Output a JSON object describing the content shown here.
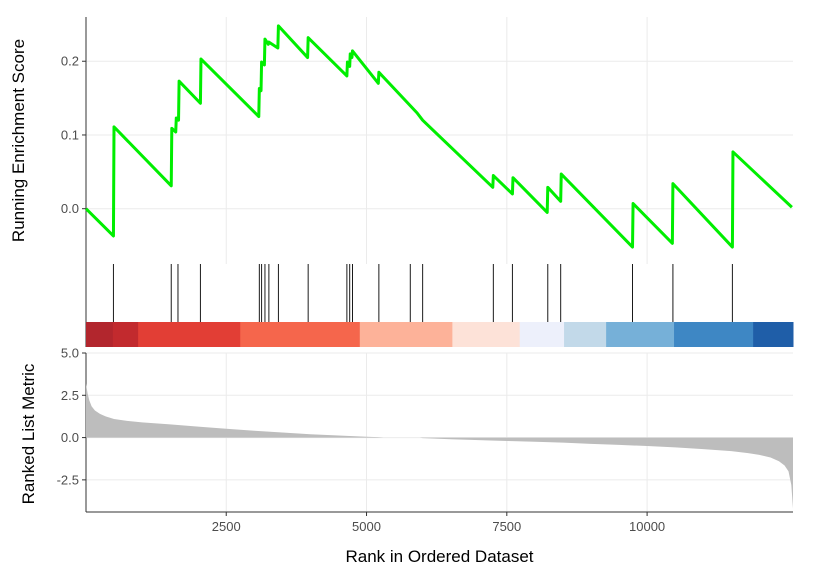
{
  "chart_data": {
    "type": "line",
    "x_range": [
      1,
      12600
    ],
    "x_ticks": [
      2500,
      5000,
      7500,
      10000
    ],
    "x_tick_labels": [
      "2500",
      "5000",
      "7500",
      "10000"
    ],
    "xlabel": "Rank in Ordered Dataset",
    "running_score": {
      "ylabel": "Running Enrichment Score",
      "ylim": [
        -0.075,
        0.26
      ],
      "y_ticks": [
        0.0,
        0.1,
        0.2
      ],
      "y_tick_labels": [
        "0.0",
        "0.1",
        "0.2"
      ],
      "color": "#00ee00",
      "x": [
        1,
        490,
        500,
        1520,
        1530,
        1600,
        1610,
        1650,
        1660,
        2040,
        2050,
        3080,
        3090,
        3120,
        3130,
        3180,
        3190,
        3250,
        3260,
        3420,
        3430,
        3950,
        3960,
        4650,
        4660,
        4700,
        4710,
        4740,
        4750,
        5210,
        5220,
        5900,
        6000,
        7250,
        7260,
        7600,
        7610,
        8220,
        8230,
        8460,
        8470,
        9740,
        9750,
        10450,
        10460,
        11520,
        11530,
        12580
      ],
      "y": [
        0.0,
        -0.037,
        0.111,
        0.031,
        0.109,
        0.104,
        0.123,
        0.12,
        0.173,
        0.143,
        0.203,
        0.125,
        0.163,
        0.16,
        0.199,
        0.195,
        0.23,
        0.223,
        0.226,
        0.218,
        0.248,
        0.205,
        0.232,
        0.18,
        0.199,
        0.193,
        0.21,
        0.205,
        0.214,
        0.17,
        0.185,
        0.13,
        0.12,
        0.029,
        0.045,
        0.02,
        0.042,
        -0.005,
        0.029,
        0.01,
        0.047,
        -0.052,
        0.007,
        -0.047,
        0.034,
        -0.052,
        0.077,
        0.002
      ]
    },
    "hit_positions": [
      490,
      1520,
      1640,
      2040,
      3090,
      3130,
      3190,
      3260,
      3430,
      3960,
      4650,
      4700,
      4750,
      5220,
      5780,
      6000,
      7260,
      7600,
      8230,
      8460,
      9740,
      10460,
      11520
    ],
    "color_bar": [
      {
        "from": 1,
        "to": 480,
        "color": "#b2262d"
      },
      {
        "from": 480,
        "to": 930,
        "color": "#c22a2e"
      },
      {
        "from": 930,
        "to": 2750,
        "color": "#e23e35"
      },
      {
        "from": 2750,
        "to": 4880,
        "color": "#f5664c"
      },
      {
        "from": 4880,
        "to": 6530,
        "color": "#fdb299"
      },
      {
        "from": 6530,
        "to": 7730,
        "color": "#fde2d8"
      },
      {
        "from": 7730,
        "to": 8520,
        "color": "#edf0fb"
      },
      {
        "from": 8520,
        "to": 9270,
        "color": "#c2d9e9"
      },
      {
        "from": 9270,
        "to": 10480,
        "color": "#76b0d8"
      },
      {
        "from": 10480,
        "to": 11890,
        "color": "#3e87c4"
      },
      {
        "from": 11890,
        "to": 12600,
        "color": "#1f5ea8"
      }
    ],
    "ranked_metric": {
      "ylabel": "Ranked List Metric",
      "ylim": [
        -4.4,
        5.0
      ],
      "y_ticks": [
        5.0,
        2.5,
        0.0,
        -2.5
      ],
      "y_tick_labels": [
        "5.0",
        "2.5",
        "0.0",
        "-2.5"
      ],
      "color": "#bdbdbd",
      "x": [
        1,
        10,
        30,
        60,
        100,
        160,
        250,
        350,
        500,
        700,
        1000,
        1500,
        2000,
        2500,
        3000,
        3500,
        4000,
        4500,
        5000,
        5200,
        5300,
        5950,
        6000,
        6500,
        7000,
        7500,
        8000,
        8500,
        9000,
        9500,
        10000,
        10500,
        11000,
        11500,
        11800,
        12000,
        12200,
        12350,
        12450,
        12520,
        12570,
        12600
      ],
      "y": [
        3.2,
        3.0,
        2.6,
        2.2,
        1.85,
        1.6,
        1.4,
        1.25,
        1.1,
        1.0,
        0.9,
        0.78,
        0.65,
        0.52,
        0.4,
        0.3,
        0.2,
        0.12,
        0.05,
        0.03,
        0.0,
        0.0,
        -0.03,
        -0.1,
        -0.15,
        -0.2,
        -0.25,
        -0.3,
        -0.37,
        -0.43,
        -0.5,
        -0.58,
        -0.68,
        -0.8,
        -0.92,
        -1.02,
        -1.18,
        -1.4,
        -1.65,
        -2.0,
        -2.8,
        -4.2
      ]
    }
  }
}
